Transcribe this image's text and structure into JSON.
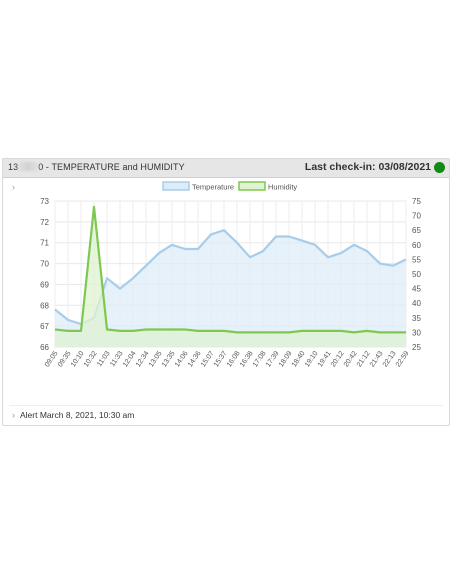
{
  "header": {
    "device_prefix": "13",
    "device_suffix": "0 - TEMPERATURE and HUMIDITY",
    "last_checkin": "Last check-in: 03/08/2021",
    "status_color": "#0f8a14"
  },
  "icons": {
    "expand": "chevron-right-icon"
  },
  "alert": {
    "text": "Alert March 8, 2021, 10:30 am"
  },
  "chart_data": {
    "type": "line",
    "x": [
      "09:05",
      "09:35",
      "10:10",
      "10:32",
      "11:03",
      "11:33",
      "12:04",
      "12:34",
      "13:05",
      "13:35",
      "14:06",
      "14:36",
      "15:07",
      "15:37",
      "16:08",
      "16:38",
      "17:08",
      "17:39",
      "18:09",
      "18:40",
      "19:10",
      "19:41",
      "20:12",
      "20:42",
      "21:12",
      "21:43",
      "22:13",
      "22:59"
    ],
    "legend_position": "top",
    "grid": true,
    "series": [
      {
        "name": "Temperature",
        "axis": "left",
        "color": "#a7cdea",
        "fill": "#ddecf8",
        "values": [
          67.8,
          67.3,
          67.1,
          67.4,
          69.3,
          68.8,
          69.3,
          69.9,
          70.5,
          70.9,
          70.7,
          70.7,
          71.4,
          71.6,
          71.0,
          70.3,
          70.6,
          71.3,
          71.3,
          71.1,
          70.9,
          70.3,
          70.5,
          70.9,
          70.6,
          70.0,
          69.9,
          70.2
        ]
      },
      {
        "name": "Humidity",
        "axis": "right",
        "color": "#7ec851",
        "fill": "#dff2d2",
        "values": [
          31,
          30.5,
          30.5,
          73,
          31,
          30.5,
          30.5,
          31,
          31,
          31,
          31,
          30.5,
          30.5,
          30.5,
          30,
          30,
          30,
          30,
          30,
          30.5,
          30.5,
          30.5,
          30.5,
          30,
          30.5,
          30,
          30,
          30
        ]
      }
    ],
    "y_left": {
      "min": 66,
      "max": 73,
      "ticks": [
        "66",
        "67",
        "68",
        "69",
        "70",
        "71",
        "72",
        "73"
      ]
    },
    "y_right": {
      "min": 25,
      "max": 75,
      "ticks": [
        "25",
        "30",
        "35",
        "40",
        "45",
        "50",
        "55",
        "60",
        "65",
        "70",
        "75"
      ]
    }
  }
}
